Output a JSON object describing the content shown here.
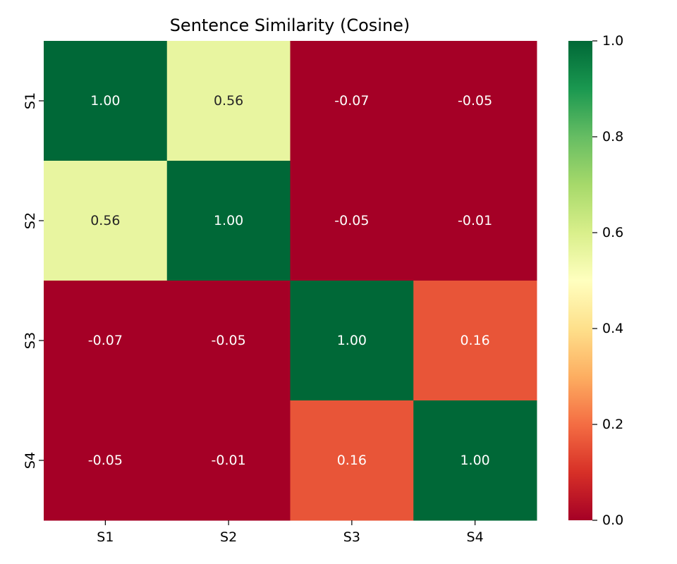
{
  "chart_data": {
    "type": "heatmap",
    "title": "Sentence Similarity (Cosine)",
    "xlabel": "",
    "ylabel": "",
    "x_categories": [
      "S1",
      "S2",
      "S3",
      "S4"
    ],
    "y_categories": [
      "S1",
      "S2",
      "S3",
      "S4"
    ],
    "values": [
      [
        1.0,
        0.56,
        -0.07,
        -0.05
      ],
      [
        0.56,
        1.0,
        -0.05,
        -0.01
      ],
      [
        -0.07,
        -0.05,
        1.0,
        0.16
      ],
      [
        -0.05,
        -0.01,
        0.16,
        1.0
      ]
    ],
    "value_format": "0.00",
    "colormap": "RdYlGn",
    "colorbar": {
      "min": 0.0,
      "max": 1.0,
      "ticks": [
        0.0,
        0.2,
        0.4,
        0.6,
        0.8,
        1.0
      ],
      "tick_labels": [
        "0.0",
        "0.2",
        "0.4",
        "0.6",
        "0.8",
        "1.0"
      ]
    },
    "colors": {
      "text_dark": "#262626",
      "text_light": "#ffffff"
    }
  }
}
